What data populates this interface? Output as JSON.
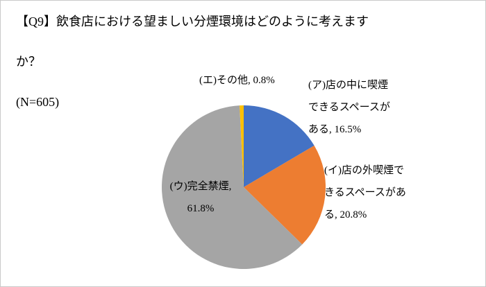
{
  "title": {
    "line1": "【Q9】飲食店における望ましい分煙環境はどのように考えます",
    "line2": "か？",
    "n_count": "(N=605)"
  },
  "chart_data": {
    "type": "pie",
    "title": "【Q9】飲食店における望ましい分煙環境はどのように考えますか？ (N=605)",
    "start_angle_deg": -90,
    "direction": "clockwise",
    "legend_position": "none",
    "segments": [
      {
        "label": "(ア)店の中に喫煙できるスペースがある",
        "value": 16.5,
        "color": "#4472C4"
      },
      {
        "label": "(イ)店の外喫煙できるスペースがある",
        "value": 20.8,
        "color": "#ED7D31"
      },
      {
        "label": "(ウ)完全禁煙",
        "value": 61.8,
        "color": "#A5A5A5"
      },
      {
        "label": "(エ)その他",
        "value": 0.8,
        "color": "#FFC000"
      }
    ]
  },
  "labels": {
    "segment_a": "(ア)店の中に喫煙\nできるスペースが\nある, 16.5%",
    "segment_b": "(イ)店の外喫煙で\nきるスペースがあ\nる, 20.8%",
    "segment_c": "(ウ)完全禁煙,\n61.8%",
    "segment_d": "(エ)その他, 0.8%"
  }
}
